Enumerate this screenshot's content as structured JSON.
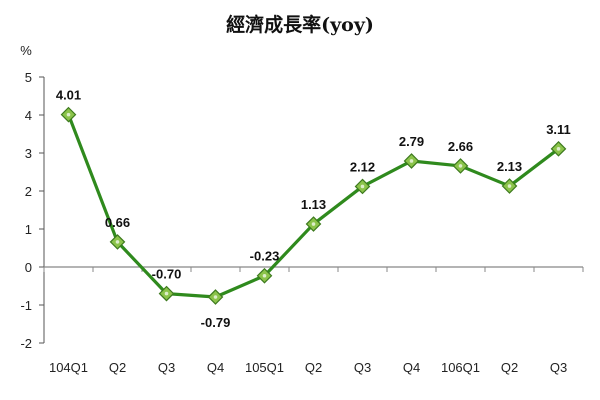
{
  "chart_data": {
    "type": "line",
    "title": "經濟成長率(yoy)",
    "unit": "%",
    "categories": [
      "104Q1",
      "Q2",
      "Q3",
      "Q4",
      "105Q1",
      "Q2",
      "Q3",
      "Q4",
      "106Q1",
      "Q2",
      "Q3"
    ],
    "series": [
      {
        "values": [
          4.01,
          0.66,
          -0.7,
          -0.79,
          -0.23,
          1.13,
          2.12,
          2.79,
          2.66,
          2.13,
          3.11
        ],
        "labels": [
          "4.01",
          "0.66",
          "-0.70",
          "-0.79",
          "-0.23",
          "1.13",
          "2.12",
          "2.79",
          "2.66",
          "2.13",
          "3.11"
        ],
        "color": "#2f8a1d",
        "marker": "diamond",
        "marker_color": "#8bc34a"
      }
    ],
    "ylim": [
      -2,
      5
    ],
    "yticks": [
      -2,
      -1,
      0,
      1,
      2,
      3,
      4,
      5
    ],
    "grid": false,
    "zero_line": true,
    "legend": "none"
  }
}
